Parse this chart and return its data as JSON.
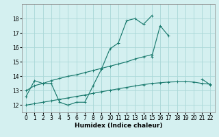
{
  "xlabel": "Humidex (Indice chaleur)",
  "x_values": [
    0,
    1,
    2,
    3,
    4,
    5,
    6,
    7,
    8,
    9,
    10,
    11,
    12,
    13,
    14,
    15,
    16,
    17,
    18,
    19,
    20,
    21,
    22
  ],
  "line_main": [
    12.6,
    13.7,
    13.5,
    13.5,
    12.2,
    12.0,
    12.2,
    12.2,
    13.35,
    14.5,
    15.9,
    16.3,
    17.85,
    18.0,
    17.6,
    18.2,
    null,
    null,
    null,
    null,
    null,
    null,
    null
  ],
  "line_right": [
    null,
    null,
    null,
    null,
    null,
    null,
    null,
    null,
    null,
    null,
    null,
    null,
    null,
    null,
    null,
    15.35,
    17.5,
    16.8,
    null,
    null,
    null,
    13.8,
    13.4
  ],
  "line_upper": [
    13.0,
    13.35,
    13.5,
    13.7,
    13.85,
    14.0,
    14.1,
    14.25,
    14.4,
    14.55,
    14.7,
    14.85,
    15.0,
    15.2,
    15.35,
    15.5,
    null,
    null,
    null,
    null,
    null,
    null,
    null
  ],
  "line_lower": [
    12.0,
    12.1,
    12.2,
    12.3,
    12.4,
    12.5,
    12.6,
    12.7,
    12.82,
    12.93,
    13.03,
    13.13,
    13.23,
    13.33,
    13.42,
    13.5,
    13.55,
    13.6,
    13.62,
    13.63,
    13.6,
    13.5,
    13.45
  ],
  "ylim": [
    11.5,
    19.0
  ],
  "xlim": [
    -0.5,
    22.5
  ],
  "yticks": [
    12,
    13,
    14,
    15,
    16,
    17,
    18
  ],
  "xticks": [
    0,
    1,
    2,
    3,
    4,
    5,
    6,
    7,
    8,
    9,
    10,
    11,
    12,
    13,
    14,
    15,
    16,
    17,
    18,
    19,
    20,
    21,
    22
  ],
  "line_color": "#1a7a6e",
  "bg_color": "#d4f0f0",
  "grid_color": "#aad8d8"
}
